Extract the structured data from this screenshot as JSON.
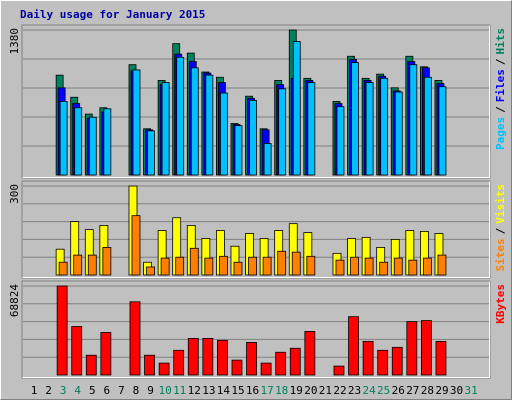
{
  "chart_data": {
    "type": "bar",
    "title": "Daily usage for January 2015",
    "title_color": "#0000a0",
    "legend_separator": "/",
    "categories": [
      "1",
      "2",
      "3",
      "4",
      "5",
      "6",
      "7",
      "8",
      "9",
      "10",
      "11",
      "12",
      "13",
      "14",
      "15",
      "16",
      "17",
      "18",
      "19",
      "20",
      "21",
      "22",
      "23",
      "24",
      "25",
      "26",
      "27",
      "28",
      "29",
      "30",
      "31"
    ],
    "category_colors": [
      "#000000",
      "#000000",
      "#00805c",
      "#00805c",
      "#000000",
      "#000000",
      "#000000",
      "#000000",
      "#000000",
      "#00805c",
      "#00805c",
      "#000000",
      "#000000",
      "#000000",
      "#000000",
      "#000000",
      "#00805c",
      "#00805c",
      "#000000",
      "#000000",
      "#000000",
      "#000000",
      "#000000",
      "#00805c",
      "#00805c",
      "#000000",
      "#000000",
      "#000000",
      "#000000",
      "#000000",
      "#00805c"
    ],
    "panels": [
      {
        "ylim": [
          0,
          1380
        ],
        "yticks": [
          1380
        ],
        "series": [
          {
            "name": "Hits",
            "color": "#00805c",
            "values": [
              null,
              null,
              950,
              740,
              580,
              640,
              null,
              1050,
              440,
              900,
              1250,
              1160,
              980,
              930,
              490,
              750,
              440,
              900,
              1380,
              920,
              0,
              700,
              1130,
              920,
              960,
              830,
              1130,
              1030,
              900,
              null,
              null
            ]
          },
          {
            "name": "Files",
            "color": "#0000ff",
            "values": [
              null,
              null,
              830,
              680,
              540,
              600,
              null,
              990,
              430,
              860,
              1150,
              1080,
              970,
              880,
              480,
              730,
              430,
              860,
              920,
              900,
              0,
              680,
              1100,
              900,
              940,
              800,
              1080,
              1020,
              870,
              null,
              null
            ]
          },
          {
            "name": "Pages",
            "color": "#00c0ff",
            "values": [
              null,
              null,
              700,
              640,
              550,
              630,
              null,
              1000,
              420,
              880,
              1120,
              1020,
              950,
              780,
              470,
              710,
              300,
              820,
              1270,
              880,
              0,
              650,
              1070,
              880,
              920,
              790,
              1050,
              930,
              840,
              null,
              null
            ]
          }
        ]
      },
      {
        "ylim": [
          0,
          300
        ],
        "yticks": [
          300
        ],
        "series": [
          {
            "name": "Visits",
            "color": "#ffff00",
            "values": [
              null,
              null,
              87,
              180,
              153,
              167,
              null,
              300,
              43,
              150,
              193,
              167,
              123,
              150,
              97,
              140,
              123,
              150,
              173,
              143,
              0,
              73,
              123,
              127,
              93,
              120,
              150,
              147,
              140,
              null,
              null
            ]
          },
          {
            "name": "Sites",
            "color": "#ff8000",
            "values": [
              null,
              null,
              43,
              67,
              67,
              93,
              null,
              200,
              27,
              57,
              60,
              90,
              57,
              63,
              43,
              60,
              60,
              80,
              77,
              63,
              0,
              50,
              60,
              57,
              43,
              57,
              50,
              57,
              67,
              null,
              null
            ]
          }
        ]
      },
      {
        "ylim": [
          0,
          68824
        ],
        "yticks": [
          68824
        ],
        "series": [
          {
            "name": "KBytes",
            "color": "#ff0000",
            "values": [
              null,
              null,
              68824,
              37500,
              15300,
              32900,
              null,
              56600,
              15300,
              9200,
              19100,
              28300,
              28300,
              26800,
              11500,
              25200,
              9200,
              17600,
              20700,
              33700,
              0,
              6900,
              45100,
              26000,
              19100,
              21400,
              41300,
              42100,
              26000,
              null,
              null
            ]
          }
        ]
      }
    ]
  }
}
